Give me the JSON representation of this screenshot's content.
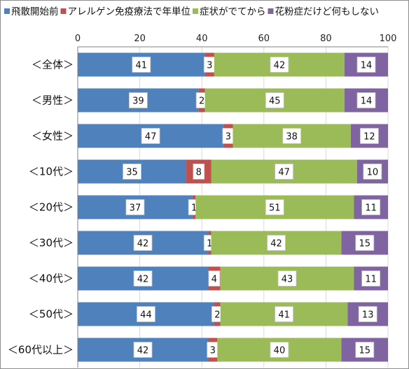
{
  "chart_data": {
    "type": "bar",
    "orientation": "horizontal",
    "stacked": true,
    "xlim": [
      0,
      100
    ],
    "xticks": [
      0,
      20,
      40,
      60,
      80,
      100
    ],
    "grid": true,
    "legend_position": "top",
    "categories": [
      "＜全体＞",
      "＜男性＞",
      "＜女性＞",
      "＜10代＞",
      "＜20代＞",
      "＜30代＞",
      "＜40代＞",
      "＜50代＞",
      "＜60代以上＞"
    ],
    "series": [
      {
        "name": "飛散開始前",
        "color": "#4f81bd",
        "values": [
          41,
          39,
          47,
          35,
          37,
          42,
          42,
          44,
          42
        ]
      },
      {
        "name": "アレルゲン免疫療法で年単位",
        "color": "#c0504d",
        "values": [
          3,
          2,
          3,
          8,
          1,
          1,
          4,
          2,
          3
        ]
      },
      {
        "name": "症状がでてから",
        "color": "#9bbb59",
        "values": [
          42,
          45,
          38,
          47,
          51,
          42,
          43,
          41,
          40
        ]
      },
      {
        "name": "花粉症だけど何もしない",
        "color": "#8064a2",
        "values": [
          14,
          14,
          12,
          10,
          11,
          15,
          11,
          13,
          15
        ]
      }
    ]
  }
}
